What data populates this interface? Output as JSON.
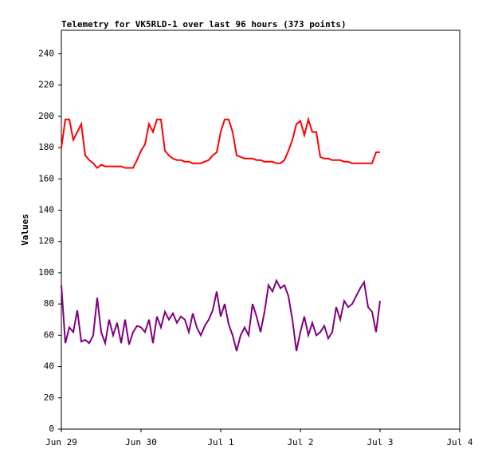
{
  "chart_data": {
    "type": "line",
    "title": "Telemetry for VK5RLD-1 over last 96 hours (373 points)",
    "y_label": "Values",
    "x": [
      0,
      0.05,
      0.1,
      0.15,
      0.2,
      0.25,
      0.3,
      0.35,
      0.4,
      0.45,
      0.5,
      0.55,
      0.6,
      0.65,
      0.7,
      0.75,
      0.8,
      0.85,
      0.9,
      0.95,
      1,
      1.05,
      1.1,
      1.15,
      1.2,
      1.25,
      1.3,
      1.35,
      1.4,
      1.45,
      1.5,
      1.55,
      1.6,
      1.65,
      1.7,
      1.75,
      1.8,
      1.85,
      1.9,
      1.95,
      2,
      2.05,
      2.1,
      2.15,
      2.2,
      2.25,
      2.3,
      2.35,
      2.4,
      2.45,
      2.5,
      2.55,
      2.6,
      2.65,
      2.7,
      2.75,
      2.8,
      2.85,
      2.9,
      2.95,
      3,
      3.05,
      3.1,
      3.15,
      3.2,
      3.25,
      3.3,
      3.35,
      3.4,
      3.45,
      3.5,
      3.55,
      3.6,
      3.65,
      3.7,
      3.75,
      3.8,
      3.85,
      3.9,
      3.95,
      4
    ],
    "series": [
      {
        "color": "#ff0000",
        "values": [
          180,
          198,
          198,
          185,
          190,
          195,
          175,
          172,
          170,
          167,
          169,
          168,
          168,
          168,
          168,
          168,
          167,
          167,
          167,
          172,
          178,
          182,
          195,
          190,
          198,
          198,
          178,
          175,
          173,
          172,
          172,
          171,
          171,
          170,
          170,
          170,
          171,
          172,
          175,
          177,
          190,
          198,
          198,
          190,
          175,
          174,
          173,
          173,
          173,
          172,
          172,
          171,
          171,
          171,
          170,
          170,
          172,
          178,
          185,
          195,
          197,
          188,
          198,
          190,
          190,
          174,
          173,
          173,
          172,
          172,
          172,
          171,
          171,
          170,
          170,
          170,
          170,
          170,
          170,
          177,
          177
        ]
      },
      {
        "color": "#800080",
        "values": [
          92,
          55,
          65,
          62,
          76,
          56,
          57,
          55,
          60,
          84,
          62,
          55,
          70,
          60,
          68,
          55,
          70,
          54,
          62,
          66,
          65,
          62,
          70,
          55,
          72,
          65,
          75,
          70,
          74,
          68,
          72,
          70,
          62,
          74,
          65,
          60,
          66,
          70,
          76,
          88,
          72,
          80,
          67,
          60,
          50,
          60,
          65,
          60,
          80,
          72,
          62,
          75,
          92,
          88,
          95,
          90,
          92,
          85,
          70,
          50,
          62,
          72,
          60,
          68,
          60,
          62,
          66,
          58,
          62,
          78,
          70,
          82,
          78,
          80,
          85,
          90,
          94,
          78,
          75,
          62,
          82
        ]
      }
    ],
    "xlim": [
      0,
      5
    ],
    "xticks": [
      {
        "value": 0,
        "label": "Jun 29"
      },
      {
        "value": 1,
        "label": "Jun 30"
      },
      {
        "value": 2,
        "label": "Jul 1"
      },
      {
        "value": 3,
        "label": "Jul 2"
      },
      {
        "value": 4,
        "label": "Jul 3"
      },
      {
        "value": 5,
        "label": "Jul 4"
      }
    ],
    "ylim": [
      0,
      255
    ],
    "yticks": [
      0,
      20,
      40,
      60,
      80,
      100,
      120,
      140,
      160,
      180,
      200,
      220,
      240
    ]
  }
}
